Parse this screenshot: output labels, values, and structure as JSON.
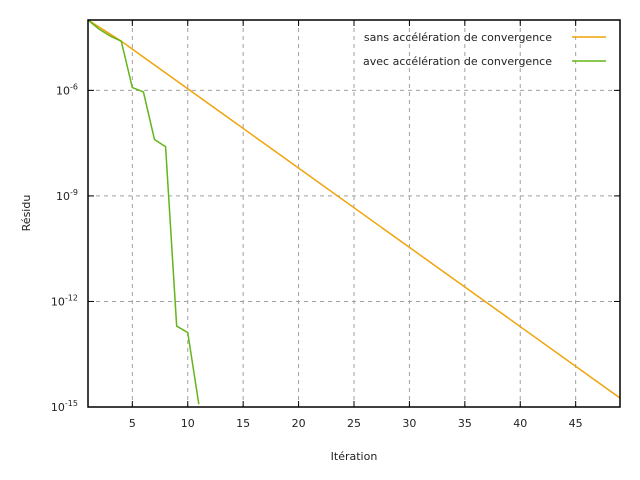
{
  "chart_data": {
    "type": "line",
    "title": "",
    "xlabel": "Itération",
    "ylabel": "Résidu",
    "xlim": [
      1,
      49
    ],
    "ylim": [
      1e-15,
      0.0001
    ],
    "yscale": "log",
    "grid": true,
    "legend_position": "top-right",
    "xticks": [
      5,
      10,
      15,
      20,
      25,
      30,
      35,
      40,
      45
    ],
    "yticks": [
      {
        "value": 1e-06,
        "base": "10",
        "exp": "-6"
      },
      {
        "value": 1e-09,
        "base": "10",
        "exp": "-9"
      },
      {
        "value": 1e-12,
        "base": "10",
        "exp": "-12"
      },
      {
        "value": 1e-15,
        "base": "10",
        "exp": "-15"
      }
    ],
    "series": [
      {
        "name": "sans accélération de convergence",
        "color": "#f0a30a",
        "x": [
          1,
          4,
          49
        ],
        "y": [
          0.0001,
          2.5e-05,
          1.8e-15
        ]
      },
      {
        "name": "avec accélération de convergence",
        "color": "#63b519",
        "x": [
          1,
          2,
          3,
          4,
          5,
          6,
          7,
          8,
          9,
          10,
          11
        ],
        "y": [
          0.0001,
          5.5e-05,
          3.5e-05,
          2.5e-05,
          1.2e-06,
          9e-07,
          4e-08,
          2.5e-08,
          2e-13,
          1.3e-13,
          1.2e-15
        ]
      }
    ]
  }
}
